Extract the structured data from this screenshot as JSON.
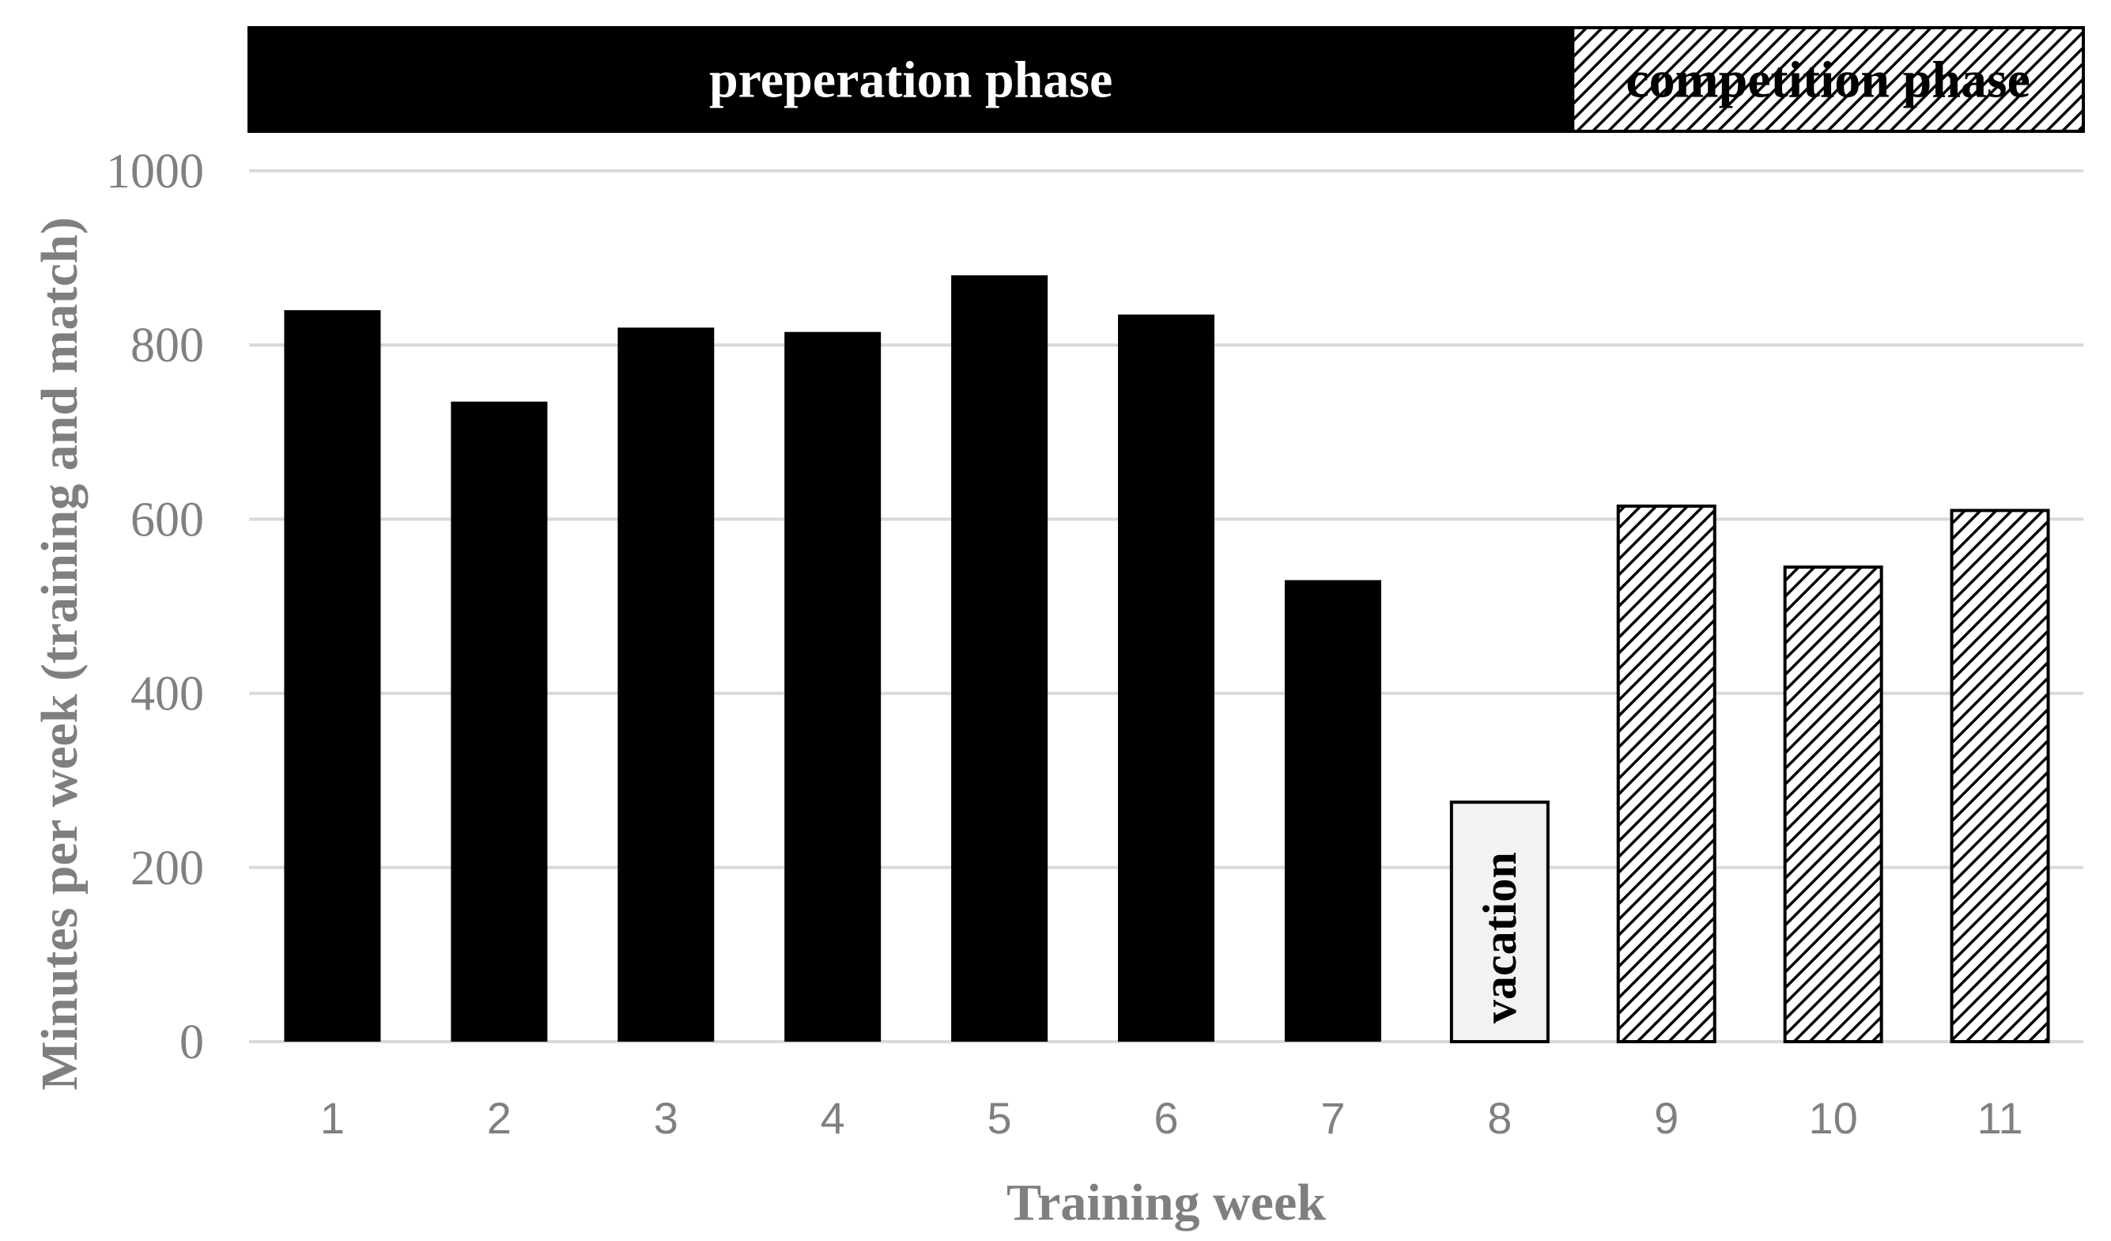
{
  "chart_data": {
    "type": "bar",
    "categories": [
      "1",
      "2",
      "3",
      "4",
      "5",
      "6",
      "7",
      "8",
      "9",
      "10",
      "11"
    ],
    "values": [
      840,
      735,
      820,
      815,
      880,
      835,
      530,
      275,
      615,
      545,
      610
    ],
    "bar_styles": [
      "solid",
      "solid",
      "solid",
      "solid",
      "solid",
      "solid",
      "solid",
      "light",
      "hatched",
      "hatched",
      "hatched"
    ],
    "bar_annotations": [
      {
        "category": "8",
        "text": "vacation"
      }
    ],
    "xlabel": "Training week",
    "ylabel": "Minutes per week (training and match)",
    "ylim": [
      0,
      1000
    ],
    "yticks": [
      0,
      200,
      400,
      600,
      800,
      1000
    ],
    "grid": true,
    "phases": [
      {
        "label": "preperation phase",
        "from_category": "1",
        "to_category": "8",
        "style": "solid"
      },
      {
        "label": "competition phase",
        "from_category": "9",
        "to_category": "11",
        "style": "hatched"
      }
    ],
    "colors": {
      "solid": "#000000",
      "light": "#f2f2f2",
      "grid": "#d9d9d9",
      "axis_text": "#808080"
    }
  }
}
